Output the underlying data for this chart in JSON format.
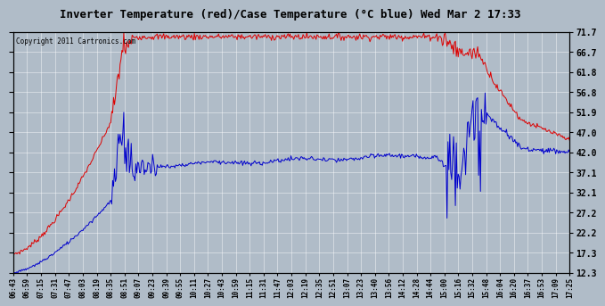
{
  "title": "Inverter Temperature (red)/Case Temperature (°C blue) Wed Mar 2 17:33",
  "copyright": "Copyright 2011 Cartronics.com",
  "yticks": [
    12.3,
    17.3,
    22.2,
    27.2,
    32.1,
    37.1,
    42.0,
    47.0,
    51.9,
    56.8,
    61.8,
    66.7,
    71.7
  ],
  "ymin": 12.3,
  "ymax": 71.7,
  "bg_color": "#b0bcc8",
  "red_color": "#dd0000",
  "blue_color": "#0000cc",
  "grid_color": "#d8dde4",
  "xtick_labels": [
    "06:43",
    "06:59",
    "07:15",
    "07:31",
    "07:47",
    "08:03",
    "08:19",
    "08:35",
    "08:51",
    "09:07",
    "09:23",
    "09:39",
    "09:55",
    "10:11",
    "10:27",
    "10:43",
    "10:59",
    "11:15",
    "11:31",
    "11:47",
    "12:03",
    "12:19",
    "12:35",
    "12:51",
    "13:07",
    "13:23",
    "13:40",
    "13:56",
    "14:12",
    "14:28",
    "14:44",
    "15:00",
    "15:16",
    "15:32",
    "15:48",
    "16:04",
    "16:20",
    "16:37",
    "16:53",
    "17:09",
    "17:25"
  ],
  "n_points": 600
}
